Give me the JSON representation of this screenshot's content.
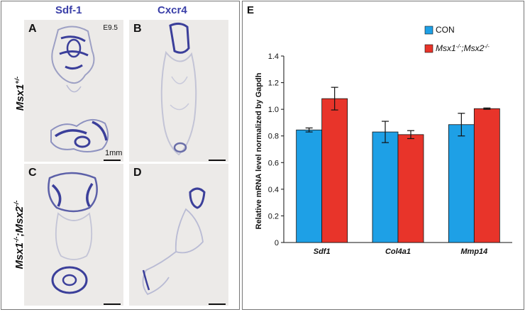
{
  "figure": {
    "column_headers": [
      "Sdf-1",
      "Cxcr4"
    ],
    "row_labels": [
      {
        "gene": "Msx1",
        "sup": "+/-",
        "gene2": "",
        "sup2": ""
      },
      {
        "gene": "Msx1",
        "sup": "-/-",
        "gene2": ";Msx2",
        "sup2": "-/-"
      }
    ],
    "panels": [
      {
        "letter": "A"
      },
      {
        "letter": "B"
      },
      {
        "letter": "C"
      },
      {
        "letter": "D"
      }
    ],
    "age_label": "E9.5",
    "scale_label": "1mm",
    "panel_e_letter": "E",
    "colors": {
      "header": "#3a3fa8",
      "stain": "#3b3f9a",
      "con": "#1ea0e6",
      "mutant": "#e8342a"
    }
  },
  "chart_data": {
    "type": "bar",
    "categories": [
      "Sdf1",
      "Col4a1",
      "Mmp14"
    ],
    "series": [
      {
        "name": "CON",
        "values": [
          0.845,
          0.83,
          0.885
        ],
        "errors": [
          0.015,
          0.08,
          0.085
        ],
        "color": "#1ea0e6"
      },
      {
        "name": "Msx1-/-;Msx2-/-",
        "values": [
          1.08,
          0.81,
          1.005
        ],
        "errors": [
          0.085,
          0.03,
          0.005
        ],
        "color": "#e8342a"
      }
    ],
    "legend": [
      {
        "gene": "CON",
        "sup": "",
        "gene2": "",
        "sup2": ""
      },
      {
        "gene": "Msx1",
        "sup": "-/-",
        "gene2": ";Msx2",
        "sup2": "-/-"
      }
    ],
    "ylabel": "Relative mRNA level normalized by Gapdh",
    "ylim": [
      0,
      1.4
    ],
    "yticks": [
      "0",
      "0.2",
      "0.4",
      "0.6",
      "0.8",
      "1.0",
      "1.2",
      "1.4"
    ],
    "grid": false,
    "legend_position": "top-right"
  }
}
